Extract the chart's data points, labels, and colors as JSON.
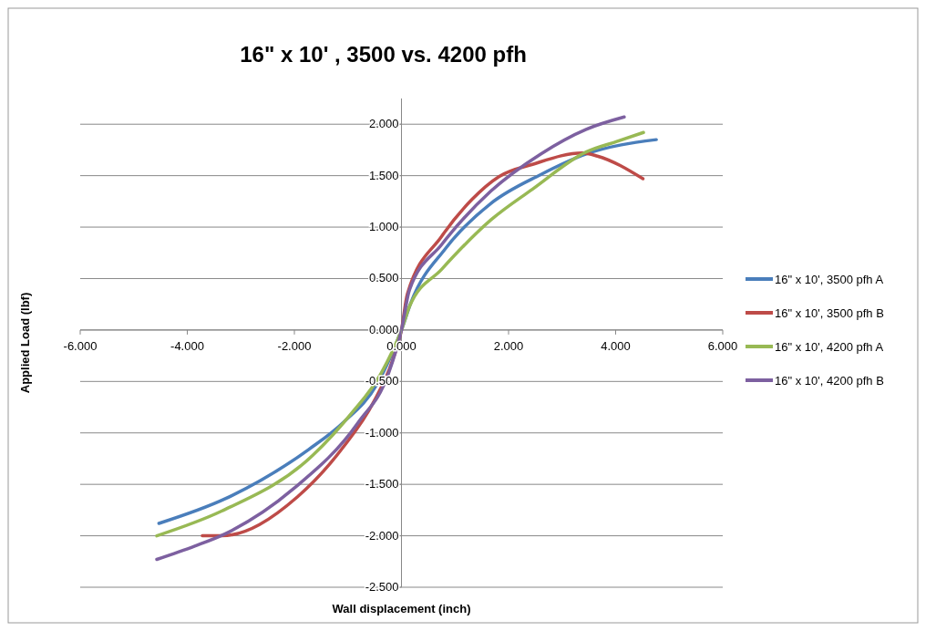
{
  "chart_data": {
    "type": "line",
    "title": "16\" x 10' , 3500 vs. 4200 pfh",
    "xlabel": "Wall displacement  (inch)",
    "ylabel": "Applied Load (lbf)",
    "xlim": [
      -6,
      6
    ],
    "ylim": [
      -2.5,
      2.25
    ],
    "xticks": [
      {
        "value": -6,
        "label": "-6.000"
      },
      {
        "value": -4,
        "label": "-4.000"
      },
      {
        "value": -2,
        "label": "-2.000"
      },
      {
        "value": 0,
        "label": "0.000"
      },
      {
        "value": 2,
        "label": "2.000"
      },
      {
        "value": 4,
        "label": "4.000"
      },
      {
        "value": 6,
        "label": "6.000"
      }
    ],
    "yticks": [
      {
        "value": -2.5,
        "label": "-2.500"
      },
      {
        "value": -2,
        "label": "-2.000"
      },
      {
        "value": -1.5,
        "label": "-1.500"
      },
      {
        "value": -1,
        "label": "-1.000"
      },
      {
        "value": -0.5,
        "label": "-0.500"
      },
      {
        "value": 0,
        "label": "0.000"
      },
      {
        "value": 0.5,
        "label": "0.500"
      },
      {
        "value": 1,
        "label": "1.000"
      },
      {
        "value": 1.5,
        "label": "1.500"
      },
      {
        "value": 2,
        "label": "2.000"
      }
    ],
    "grid": "y",
    "legend": "right",
    "marker": "none",
    "line_style": "solid",
    "series": [
      {
        "name": "16\" x 10', 3500 pfh A",
        "color": "#4a7ebb",
        "x": [
          -4.53,
          -3.29,
          -1.73,
          -1.09,
          -0.45,
          0,
          0.18,
          0.82,
          1.67,
          2.6,
          3.45,
          4.76
        ],
        "values": [
          -1.88,
          -1.64,
          -1.16,
          -0.9,
          -0.52,
          0,
          0.27,
          0.79,
          1.23,
          1.51,
          1.71,
          1.85
        ]
      },
      {
        "name": "16\" x 10', 3500 pfh B",
        "color": "#be4b48",
        "x": [
          -3.72,
          -3.36,
          -1.94,
          -1.09,
          -0.52,
          -0.17,
          0,
          0.11,
          0.75,
          1.32,
          1.82,
          2.45,
          3.38,
          3.66,
          4.51
        ],
        "values": [
          -2.0,
          -2.0,
          -1.62,
          -1.14,
          -0.7,
          -0.3,
          0,
          0.35,
          0.91,
          1.27,
          1.49,
          1.61,
          1.72,
          1.69,
          1.47
        ]
      },
      {
        "name": "16\" x 10', 4200 pfh A",
        "color": "#98b954",
        "x": [
          -4.57,
          -3.36,
          -1.66,
          -0.95,
          -0.38,
          0,
          0.15,
          0.75,
          1.67,
          2.45,
          3.45,
          4.01,
          4.52
        ],
        "values": [
          -2.0,
          -1.76,
          -1.22,
          -0.82,
          -0.42,
          0,
          0.23,
          0.59,
          1.07,
          1.37,
          1.73,
          1.83,
          1.92
        ]
      },
      {
        "name": "16\" x 10', 4200 pfh B",
        "color": "#7d60a0",
        "x": [
          -4.57,
          -3.86,
          -3.29,
          -2.01,
          -0.81,
          -0.24,
          0,
          0.15,
          0.75,
          1.67,
          2.6,
          3.45,
          4.16
        ],
        "values": [
          -2.23,
          -2.1,
          -1.98,
          -1.54,
          -0.9,
          -0.42,
          0,
          0.39,
          0.83,
          1.35,
          1.71,
          1.95,
          2.07
        ]
      }
    ]
  }
}
